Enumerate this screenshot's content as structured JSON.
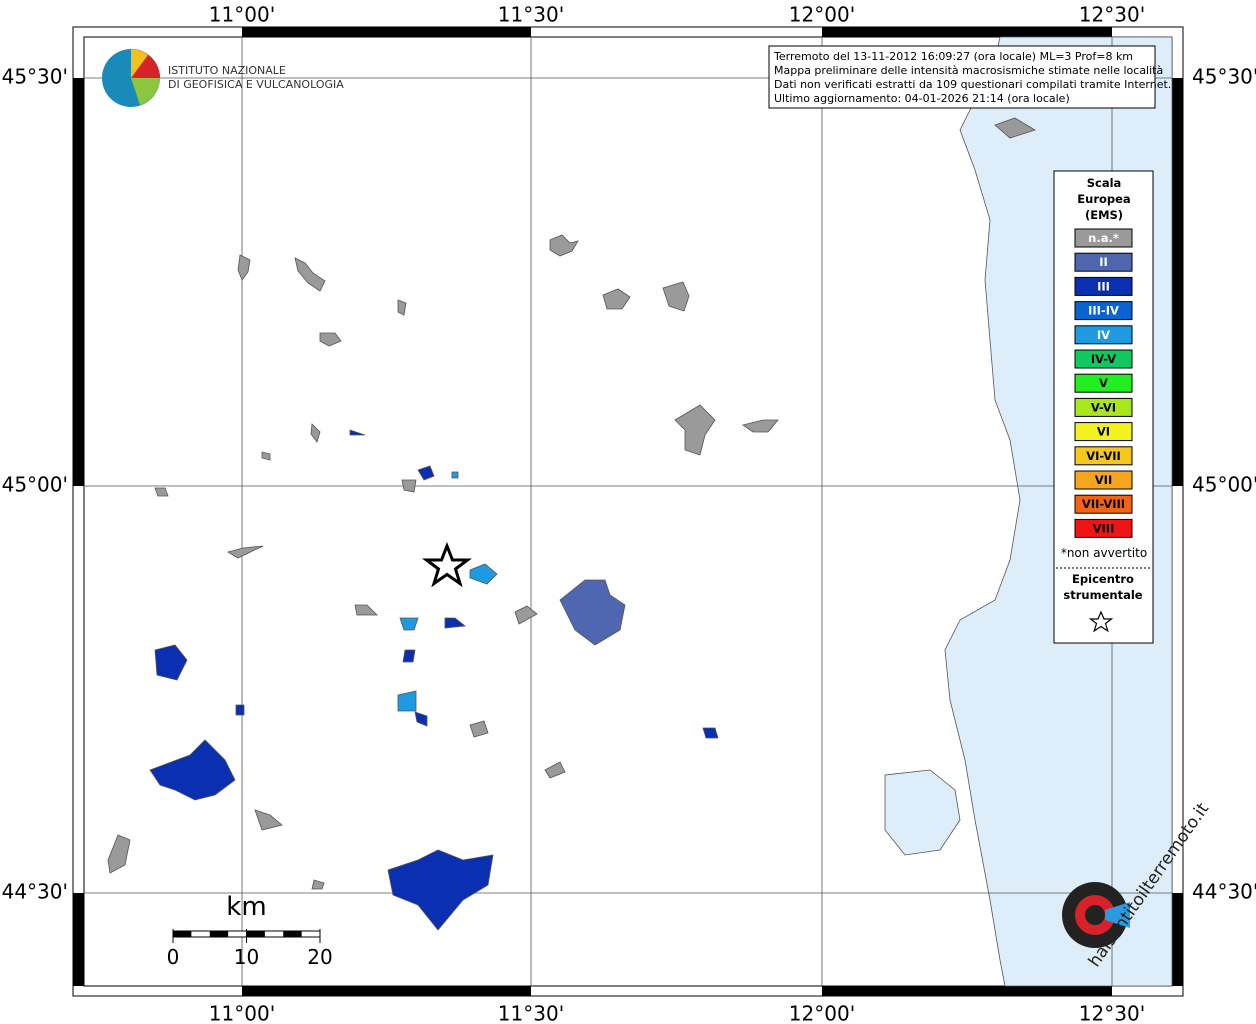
{
  "lon_labels": [
    "11°00'",
    "11°30'",
    "12°00'",
    "12°30'"
  ],
  "lat_labels": [
    "45°30'",
    "45°00'",
    "44°30'"
  ],
  "info": [
    "Terremoto del 13-11-2012 16:09:27 (ora locale) ML=3 Prof=8 km",
    "Mappa preliminare delle intensità macrosismiche stimate nelle località",
    "Dati non verificati estratti da 109 questionari compilati tramite Internet.",
    "Ultimo aggiornamento: 04-01-2026 21:14 (ora locale)"
  ],
  "logo": [
    "ISTITUTO NAZIONALE",
    "DI GEOFISICA E VULCANOLOGIA"
  ],
  "legend": {
    "title": [
      "Scala",
      "Europea",
      "(EMS)"
    ],
    "items": [
      {
        "label": "n.a.*",
        "color": "#9a9a9a"
      },
      {
        "label": "II",
        "color": "#4f66b0"
      },
      {
        "label": "III",
        "color": "#0a2fb0"
      },
      {
        "label": "III-IV",
        "color": "#0a64d0"
      },
      {
        "label": "IV",
        "color": "#1e9be0"
      },
      {
        "label": "IV-V",
        "color": "#10c860"
      },
      {
        "label": "V",
        "color": "#22ee22"
      },
      {
        "label": "V-VI",
        "color": "#a8e61e"
      },
      {
        "label": "VI",
        "color": "#f2f21e"
      },
      {
        "label": "VI-VII",
        "color": "#f5c81e"
      },
      {
        "label": "VII",
        "color": "#f5a51e"
      },
      {
        "label": "VII-VIII",
        "color": "#f56414"
      },
      {
        "label": "VIII",
        "color": "#f01414"
      }
    ],
    "note": "*non avvertito",
    "epicenter": [
      "Epicentro",
      "strumentale"
    ]
  },
  "scale": {
    "unit": "km",
    "ticks": [
      0,
      10,
      20
    ]
  },
  "site": "haisentitoilterremoto.it"
}
